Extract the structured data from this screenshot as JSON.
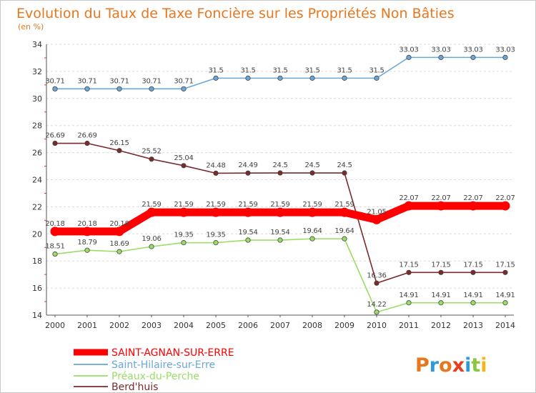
{
  "chart_data": {
    "type": "line",
    "title": "Evolution du Taux de Taxe Foncière sur les Propriétés Non Bâties",
    "unit_label": "(en %)",
    "categories": [
      "2000",
      "2001",
      "2002",
      "2003",
      "2004",
      "2005",
      "2006",
      "2007",
      "2008",
      "2009",
      "2010",
      "2011",
      "2012",
      "2013",
      "2014"
    ],
    "ylim": [
      14,
      34
    ],
    "yticks": [
      14,
      16,
      18,
      20,
      22,
      24,
      26,
      28,
      30,
      32,
      34
    ],
    "grid": "horizontal-dashed",
    "series": [
      {
        "name": "SAINT-AGNAN-SUR-ERRE",
        "color": "#ff0000",
        "emphasis": "thick",
        "values": [
          20.18,
          20.18,
          20.18,
          21.59,
          21.59,
          21.59,
          21.59,
          21.59,
          21.59,
          21.59,
          21.05,
          22.07,
          22.07,
          22.07,
          22.07
        ],
        "labels": [
          "20.18",
          "20.18",
          "20.18",
          "21.59",
          "21.59",
          "21.59",
          "21.59",
          "21.59",
          "21.59",
          "21.59",
          "21.05",
          "22.07",
          "22.07",
          "22.07",
          "22.07"
        ]
      },
      {
        "name": "Saint-Hilaire-sur-Erre",
        "color": "#6aa6d8",
        "values": [
          30.71,
          30.71,
          30.71,
          30.71,
          30.71,
          31.5,
          31.5,
          31.5,
          31.5,
          31.5,
          31.5,
          33.03,
          33.03,
          33.03,
          33.03
        ],
        "labels": [
          "30.71",
          "30.71",
          "30.71",
          "30.71",
          "30.71",
          "31.5",
          "31.5",
          "31.5",
          "31.5",
          "31.5",
          "31.5",
          "33.03",
          "33.03",
          "33.03",
          "33.03"
        ]
      },
      {
        "name": "Préaux-du-Perche",
        "color": "#99dd66",
        "values": [
          18.51,
          18.79,
          18.69,
          19.06,
          19.35,
          19.35,
          19.54,
          19.54,
          19.64,
          19.64,
          14.22,
          14.91,
          14.91,
          14.91,
          14.91
        ],
        "labels": [
          "18.51",
          "18.79",
          "18.69",
          "19.06",
          "19.35",
          "19.35",
          "19.54",
          "19.54",
          "19.64",
          "19.64",
          "14.22",
          "14.91",
          "14.91",
          "14.91",
          "14.91"
        ]
      },
      {
        "name": "Berd'huis",
        "color": "#7a2a2a",
        "values": [
          26.69,
          26.69,
          26.15,
          25.52,
          25.04,
          24.48,
          24.49,
          24.5,
          24.5,
          24.5,
          16.36,
          17.15,
          17.15,
          17.15,
          17.15
        ],
        "labels": [
          "26.69",
          "26.69",
          "26.15",
          "25.52",
          "25.04",
          "24.48",
          "24.49",
          "24.5",
          "24.5",
          "24.5",
          "16.36",
          "17.15",
          "17.15",
          "17.15",
          "17.15"
        ]
      }
    ],
    "legend_position": "bottom-left"
  },
  "brand": {
    "logo_letters": [
      "P",
      "r",
      "o",
      "x",
      "i",
      "t",
      "i"
    ],
    "logo_colors": [
      "#e8761e",
      "#2e9adb",
      "#e8761e",
      "#e83d1e",
      "#2e9adb",
      "#8cc63f",
      "#f2b51e"
    ]
  }
}
